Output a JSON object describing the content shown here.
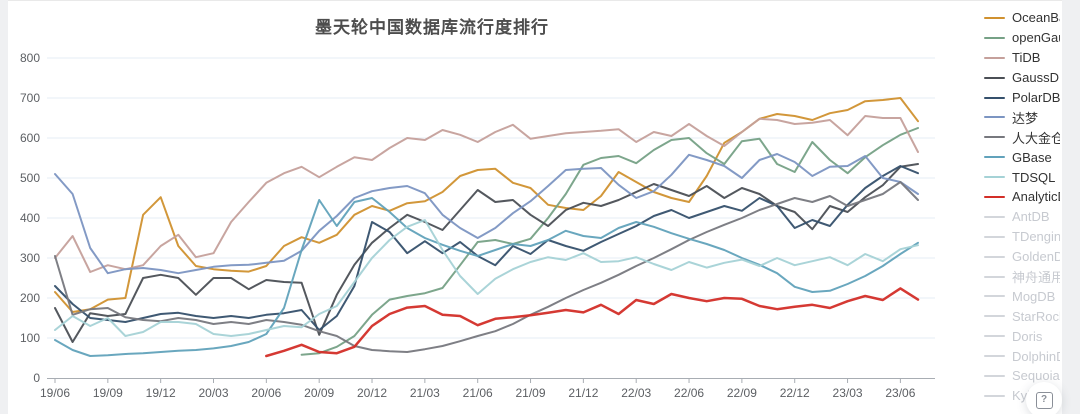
{
  "chart_data": {
    "type": "line",
    "title": "墨天轮中国数据库流行度排行",
    "xlabel": "",
    "ylabel": "",
    "ylim": [
      0,
      800
    ],
    "y_step": 100,
    "grid": true,
    "legend_position": "right",
    "n_points": 50,
    "points_per_tick": 3,
    "x_tick_labels": [
      "19/06",
      "19/09",
      "19/12",
      "20/03",
      "20/06",
      "20/09",
      "20/12",
      "21/03",
      "21/06",
      "21/09",
      "21/12",
      "22/03",
      "22/06",
      "22/09",
      "22/12",
      "23/03",
      "23/06"
    ],
    "series": [
      {
        "name": "OceanBase",
        "color": "#d0912f",
        "active": true,
        "values": [
          215,
          165,
          172,
          196,
          200,
          408,
          452,
          330,
          280,
          272,
          268,
          266,
          280,
          330,
          352,
          338,
          358,
          408,
          430,
          418,
          437,
          442,
          465,
          505,
          520,
          523,
          488,
          475,
          433,
          425,
          420,
          455,
          515,
          490,
          465,
          450,
          440,
          505,
          588,
          615,
          648,
          660,
          655,
          645,
          662,
          670,
          692,
          695,
          700,
          642
        ]
      },
      {
        "name": "openGauss",
        "color": "#76a186",
        "active": true,
        "values": [
          null,
          null,
          null,
          null,
          null,
          null,
          null,
          null,
          null,
          null,
          null,
          null,
          null,
          null,
          58,
          62,
          78,
          105,
          158,
          196,
          205,
          212,
          225,
          282,
          340,
          345,
          335,
          348,
          400,
          460,
          533,
          550,
          555,
          537,
          570,
          595,
          600,
          562,
          535,
          592,
          598,
          535,
          515,
          590,
          545,
          512,
          552,
          582,
          608,
          625
        ]
      },
      {
        "name": "TiDB",
        "color": "#c5a09b",
        "active": true,
        "values": [
          300,
          355,
          265,
          282,
          272,
          282,
          330,
          358,
          302,
          312,
          390,
          440,
          488,
          512,
          528,
          502,
          528,
          552,
          545,
          575,
          600,
          595,
          620,
          608,
          590,
          615,
          633,
          598,
          605,
          612,
          615,
          618,
          622,
          590,
          615,
          605,
          635,
          605,
          580,
          615,
          648,
          645,
          635,
          638,
          645,
          607,
          655,
          650,
          650,
          565
        ]
      },
      {
        "name": "GaussDB",
        "color": "#4b4f55",
        "active": true,
        "values": [
          175,
          90,
          162,
          155,
          160,
          250,
          258,
          250,
          208,
          250,
          250,
          222,
          245,
          240,
          238,
          108,
          208,
          283,
          338,
          375,
          408,
          390,
          370,
          420,
          470,
          440,
          445,
          408,
          380,
          420,
          438,
          430,
          445,
          465,
          485,
          470,
          455,
          480,
          450,
          475,
          460,
          430,
          415,
          372,
          430,
          415,
          452,
          482,
          528,
          535
        ]
      },
      {
        "name": "PolarDB",
        "color": "#35506c",
        "active": true,
        "values": [
          230,
          185,
          150,
          145,
          140,
          150,
          160,
          163,
          155,
          150,
          155,
          150,
          158,
          162,
          170,
          120,
          155,
          230,
          390,
          365,
          312,
          342,
          312,
          340,
          305,
          282,
          330,
          310,
          345,
          330,
          318,
          340,
          360,
          380,
          405,
          420,
          400,
          415,
          430,
          418,
          450,
          430,
          375,
          395,
          380,
          433,
          475,
          505,
          530,
          512
        ]
      },
      {
        "name": "达梦",
        "color": "#7c95c2",
        "active": true,
        "values": [
          510,
          460,
          325,
          262,
          272,
          275,
          270,
          262,
          270,
          278,
          282,
          283,
          288,
          293,
          318,
          368,
          405,
          450,
          467,
          475,
          480,
          462,
          408,
          375,
          350,
          375,
          412,
          442,
          480,
          520,
          523,
          525,
          483,
          450,
          467,
          508,
          558,
          545,
          530,
          500,
          545,
          560,
          540,
          505,
          528,
          530,
          555,
          500,
          490,
          460
        ]
      },
      {
        "name": "人大金仓",
        "color": "#77787e",
        "active": true,
        "values": [
          305,
          158,
          172,
          175,
          152,
          145,
          142,
          150,
          145,
          135,
          140,
          135,
          145,
          140,
          133,
          117,
          105,
          80,
          70,
          67,
          65,
          72,
          80,
          92,
          105,
          117,
          135,
          158,
          178,
          200,
          220,
          238,
          258,
          280,
          300,
          322,
          345,
          365,
          383,
          400,
          420,
          435,
          450,
          440,
          455,
          430,
          445,
          460,
          490,
          445
        ]
      },
      {
        "name": "GBase",
        "color": "#61a2bb",
        "active": true,
        "values": [
          95,
          70,
          55,
          57,
          60,
          62,
          65,
          68,
          70,
          74,
          80,
          90,
          110,
          175,
          320,
          445,
          380,
          440,
          450,
          415,
          375,
          350,
          333,
          318,
          305,
          320,
          335,
          330,
          345,
          368,
          355,
          350,
          375,
          390,
          378,
          362,
          348,
          335,
          320,
          300,
          283,
          262,
          228,
          215,
          218,
          235,
          255,
          280,
          310,
          338
        ]
      },
      {
        "name": "TDSQL",
        "color": "#a5d2d6",
        "active": true,
        "values": [
          120,
          155,
          130,
          150,
          105,
          115,
          140,
          140,
          135,
          110,
          105,
          110,
          120,
          130,
          127,
          160,
          180,
          240,
          300,
          345,
          378,
          395,
          320,
          255,
          210,
          248,
          272,
          290,
          302,
          295,
          312,
          290,
          292,
          302,
          285,
          270,
          290,
          276,
          288,
          296,
          280,
          300,
          282,
          292,
          302,
          282,
          310,
          292,
          322,
          332
        ]
      },
      {
        "name": "AnalyticDB",
        "color": "#d32e28",
        "width": 2.5,
        "active": true,
        "values": [
          null,
          null,
          null,
          null,
          null,
          null,
          null,
          null,
          null,
          null,
          null,
          null,
          55,
          68,
          83,
          65,
          62,
          78,
          130,
          160,
          176,
          180,
          158,
          155,
          132,
          148,
          152,
          157,
          163,
          170,
          164,
          183,
          160,
          195,
          185,
          210,
          200,
          192,
          200,
          198,
          180,
          172,
          178,
          183,
          175,
          192,
          205,
          195,
          224,
          196
        ]
      },
      {
        "name": "AntDB",
        "color": "#d3d6db",
        "active": false,
        "values": []
      },
      {
        "name": "TDengine",
        "color": "#d3d6db",
        "active": false,
        "values": []
      },
      {
        "name": "GoldenDB",
        "color": "#d3d6db",
        "active": false,
        "values": []
      },
      {
        "name": "神舟通用",
        "color": "#d3d6db",
        "active": false,
        "values": []
      },
      {
        "name": "MogDB",
        "color": "#d3d6db",
        "active": false,
        "values": []
      },
      {
        "name": "StarRocks",
        "color": "#d3d6db",
        "active": false,
        "values": []
      },
      {
        "name": "Doris",
        "color": "#d3d6db",
        "active": false,
        "values": []
      },
      {
        "name": "DolphinDB",
        "color": "#d3d6db",
        "active": false,
        "values": []
      },
      {
        "name": "SequoiaDB",
        "color": "#d3d6db",
        "active": false,
        "values": []
      },
      {
        "name": "Kyligence",
        "color": "#d3d6db",
        "active": false,
        "values": []
      }
    ]
  },
  "help_button": {
    "icon_label": "?"
  }
}
